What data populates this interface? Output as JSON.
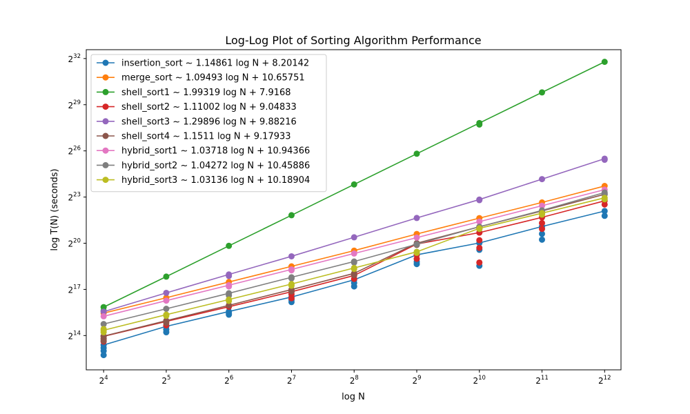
{
  "chart_data": {
    "type": "line",
    "title": "Log-Log Plot of Sorting Algorithm Performance",
    "xlabel": "log N",
    "ylabel": "log T(N) (seconds)",
    "x_scale": "log2",
    "y_scale": "log2",
    "x_ticks": [
      {
        "base": "2",
        "exp": "4",
        "value": 16
      },
      {
        "base": "2",
        "exp": "5",
        "value": 32
      },
      {
        "base": "2",
        "exp": "6",
        "value": 64
      },
      {
        "base": "2",
        "exp": "7",
        "value": 128
      },
      {
        "base": "2",
        "exp": "8",
        "value": 256
      },
      {
        "base": "2",
        "exp": "9",
        "value": 512
      },
      {
        "base": "2",
        "exp": "10",
        "value": 1024
      },
      {
        "base": "2",
        "exp": "11",
        "value": 2048
      },
      {
        "base": "2",
        "exp": "12",
        "value": 4096
      }
    ],
    "y_ticks": [
      {
        "base": "2",
        "exp": "14",
        "value": 16384
      },
      {
        "base": "2",
        "exp": "17",
        "value": 131072
      },
      {
        "base": "2",
        "exp": "20",
        "value": 1048576
      },
      {
        "base": "2",
        "exp": "23",
        "value": 8388608
      },
      {
        "base": "2",
        "exp": "26",
        "value": 67108864
      },
      {
        "base": "2",
        "exp": "29",
        "value": 536870912
      },
      {
        "base": "2",
        "exp": "32",
        "value": 4294967296
      }
    ],
    "xlim": [
      13.2,
      4910
    ],
    "ylim": [
      3500,
      6400000000
    ],
    "legend_position": "top-left",
    "grid": false,
    "x": [
      16,
      32,
      64,
      128,
      256,
      512,
      1024,
      2048,
      4096
    ],
    "series": [
      {
        "name": "insertion_sort ~ 1.14861 log N + 8.20142",
        "color": "#1f77b4",
        "values": [
          10700,
          24800,
          48500,
          93000,
          202000,
          622000,
          1060000,
          2230000,
          4470000
        ],
        "scatter": [
          [
            16,
            6800
          ],
          [
            16,
            8200
          ],
          [
            16,
            9400
          ],
          [
            16,
            10700
          ],
          [
            32,
            19000
          ],
          [
            32,
            21500
          ],
          [
            32,
            24800
          ],
          [
            64,
            42000
          ],
          [
            64,
            45000
          ],
          [
            64,
            48500
          ],
          [
            128,
            74000
          ],
          [
            128,
            82000
          ],
          [
            128,
            93000
          ],
          [
            256,
            150000
          ],
          [
            256,
            175000
          ],
          [
            256,
            202000
          ],
          [
            512,
            410000
          ],
          [
            512,
            455000
          ],
          [
            512,
            622000
          ],
          [
            1024,
            380000
          ],
          [
            1024,
            780000
          ],
          [
            1024,
            1060000
          ],
          [
            2048,
            1230000
          ],
          [
            2048,
            1600000
          ],
          [
            2048,
            2230000
          ],
          [
            4096,
            3600000
          ],
          [
            4096,
            4470000
          ]
        ]
      },
      {
        "name": "merge_sort ~ 1.09493 log N + 10.65751",
        "color": "#ff7f0e",
        "values": [
          45000,
          90000,
          183000,
          370000,
          752000,
          1590000,
          3250000,
          6580000,
          13800000
        ],
        "scatter": [
          [
            16,
            45000
          ],
          [
            32,
            90000
          ],
          [
            64,
            183000
          ],
          [
            128,
            370000
          ],
          [
            256,
            752000
          ],
          [
            512,
            1590000
          ],
          [
            1024,
            3250000
          ],
          [
            2048,
            6580000
          ],
          [
            4096,
            13800000
          ]
        ]
      },
      {
        "name": "shell_sort1 ~ 1.99319 log N + 7.9168",
        "color": "#2ca02c",
        "values": [
          59000,
          233000,
          932000,
          3700000,
          14800000,
          59000000,
          235000000,
          935000000,
          3700000000
        ],
        "scatter": [
          [
            16,
            50000
          ],
          [
            16,
            59000
          ],
          [
            32,
            233000
          ],
          [
            64,
            932000
          ],
          [
            128,
            3700000
          ],
          [
            256,
            14800000
          ],
          [
            512,
            59000000
          ],
          [
            1024,
            220000000
          ],
          [
            1024,
            235000000
          ],
          [
            2048,
            935000000
          ],
          [
            4096,
            3700000000
          ]
        ]
      },
      {
        "name": "shell_sort2 ~ 1.11002 log N + 9.04833",
        "color": "#d62728",
        "values": [
          15800,
          31000,
          60000,
          118000,
          245000,
          1010000,
          1690000,
          3360000,
          7080000
        ],
        "scatter": [
          [
            16,
            12500
          ],
          [
            16,
            14000
          ],
          [
            16,
            15800
          ],
          [
            32,
            26000
          ],
          [
            32,
            31000
          ],
          [
            64,
            60000
          ],
          [
            128,
            88000
          ],
          [
            128,
            105000
          ],
          [
            128,
            118000
          ],
          [
            256,
            210000
          ],
          [
            256,
            245000
          ],
          [
            512,
            520000
          ],
          [
            512,
            620000
          ],
          [
            512,
            1010000
          ],
          [
            1024,
            440000
          ],
          [
            1024,
            850000
          ],
          [
            1024,
            1200000
          ],
          [
            1024,
            1690000
          ],
          [
            2048,
            2000000
          ],
          [
            2048,
            2600000
          ],
          [
            2048,
            3360000
          ],
          [
            4096,
            6000000
          ],
          [
            4096,
            7080000
          ]
        ]
      },
      {
        "name": "shell_sort3 ~ 1.29896 log N + 9.88216",
        "color": "#9467bd",
        "values": [
          48000,
          112000,
          257000,
          582000,
          1370000,
          3270000,
          7500000,
          18800000,
          47200000
        ],
        "scatter": [
          [
            16,
            48000
          ],
          [
            32,
            112000
          ],
          [
            64,
            240000
          ],
          [
            64,
            257000
          ],
          [
            128,
            582000
          ],
          [
            256,
            1370000
          ],
          [
            512,
            3270000
          ],
          [
            1024,
            7300000
          ],
          [
            1024,
            7500000
          ],
          [
            2048,
            18800000
          ],
          [
            4096,
            45000000
          ],
          [
            4096,
            47200000
          ]
        ]
      },
      {
        "name": "shell_sort4 ~ 1.1511 log N + 9.17933",
        "color": "#8c564b",
        "values": [
          16000,
          32000,
          64000,
          130000,
          270000,
          1050000,
          2200000,
          4480000,
          9500000
        ],
        "scatter": [
          [
            16,
            13000
          ],
          [
            16,
            14500
          ],
          [
            16,
            16000
          ],
          [
            32,
            29000
          ],
          [
            32,
            32000
          ],
          [
            64,
            64000
          ],
          [
            128,
            120000
          ],
          [
            128,
            130000
          ],
          [
            256,
            250000
          ],
          [
            256,
            270000
          ],
          [
            512,
            970000
          ],
          [
            512,
            1050000
          ],
          [
            1024,
            2000000
          ],
          [
            1024,
            2200000
          ],
          [
            2048,
            4100000
          ],
          [
            2048,
            4480000
          ],
          [
            4096,
            9500000
          ]
        ]
      },
      {
        "name": "hybrid_sort1 ~ 1.03718 log N + 10.94366",
        "color": "#e377c2",
        "values": [
          39000,
          79000,
          158000,
          322000,
          660000,
          1350000,
          2770000,
          5680000,
          11700000
        ],
        "scatter": [
          [
            16,
            39000
          ],
          [
            32,
            79000
          ],
          [
            64,
            150000
          ],
          [
            64,
            158000
          ],
          [
            128,
            310000
          ],
          [
            128,
            322000
          ],
          [
            256,
            660000
          ],
          [
            512,
            1350000
          ],
          [
            1024,
            2770000
          ],
          [
            2048,
            5680000
          ],
          [
            4096,
            11700000
          ]
        ]
      },
      {
        "name": "hybrid_sort2 ~ 1.04272 log N + 10.45886",
        "color": "#7f7f7f",
        "values": [
          27500,
          54700,
          110000,
          226000,
          460000,
          1000000,
          2200000,
          4600000,
          10300000
        ],
        "scatter": [
          [
            16,
            27500
          ],
          [
            32,
            54700
          ],
          [
            64,
            100000
          ],
          [
            64,
            110000
          ],
          [
            128,
            215000
          ],
          [
            128,
            226000
          ],
          [
            256,
            440000
          ],
          [
            256,
            460000
          ],
          [
            512,
            1000000
          ],
          [
            1024,
            2200000
          ],
          [
            2048,
            4600000
          ],
          [
            4096,
            9700000
          ],
          [
            4096,
            10300000
          ]
        ]
      },
      {
        "name": "hybrid_sort3 ~ 1.03136 log N + 10.18904",
        "color": "#bcbd22",
        "values": [
          20800,
          42000,
          83000,
          167000,
          344000,
          712000,
          2050000,
          4060000,
          8100000
        ],
        "scatter": [
          [
            16,
            19000
          ],
          [
            16,
            20800
          ],
          [
            16,
            22000
          ],
          [
            32,
            40000
          ],
          [
            32,
            42000
          ],
          [
            64,
            78000
          ],
          [
            64,
            83000
          ],
          [
            128,
            155000
          ],
          [
            128,
            167000
          ],
          [
            256,
            330000
          ],
          [
            256,
            344000
          ],
          [
            512,
            680000
          ],
          [
            512,
            712000
          ],
          [
            1024,
            2000000
          ],
          [
            1024,
            2050000
          ],
          [
            2048,
            3800000
          ],
          [
            2048,
            4060000
          ],
          [
            4096,
            7600000
          ],
          [
            4096,
            8100000
          ]
        ]
      }
    ]
  }
}
